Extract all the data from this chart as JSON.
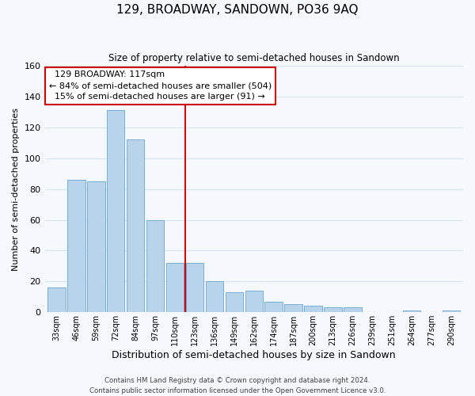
{
  "title": "129, BROADWAY, SANDOWN, PO36 9AQ",
  "subtitle": "Size of property relative to semi-detached houses in Sandown",
  "xlabel": "Distribution of semi-detached houses by size in Sandown",
  "ylabel": "Number of semi-detached properties",
  "footer_line1": "Contains HM Land Registry data © Crown copyright and database right 2024.",
  "footer_line2": "Contains public sector information licensed under the Open Government Licence v3.0.",
  "categories": [
    "33sqm",
    "46sqm",
    "59sqm",
    "72sqm",
    "84sqm",
    "97sqm",
    "110sqm",
    "123sqm",
    "136sqm",
    "149sqm",
    "162sqm",
    "174sqm",
    "187sqm",
    "200sqm",
    "213sqm",
    "226sqm",
    "239sqm",
    "251sqm",
    "264sqm",
    "277sqm",
    "290sqm"
  ],
  "values": [
    16,
    86,
    85,
    131,
    112,
    60,
    32,
    32,
    20,
    13,
    14,
    7,
    5,
    4,
    3,
    3,
    0,
    0,
    1,
    0,
    1
  ],
  "bar_color": "#b8d4ea",
  "bar_edge_color": "#7aaed0",
  "highlight_color": "#cc0000",
  "highlight_index": 7,
  "property_label": "129 BROADWAY: 117sqm",
  "pct_smaller": 84,
  "count_smaller": 504,
  "pct_larger": 15,
  "count_larger": 91,
  "ylim": [
    0,
    160
  ],
  "yticks": [
    0,
    20,
    40,
    60,
    80,
    100,
    120,
    140,
    160
  ],
  "background_color": "#f5f8fc",
  "grid_color": "#d8e4f0",
  "annotation_box_color": "#ffffff",
  "annotation_box_edge": "#cc0000"
}
